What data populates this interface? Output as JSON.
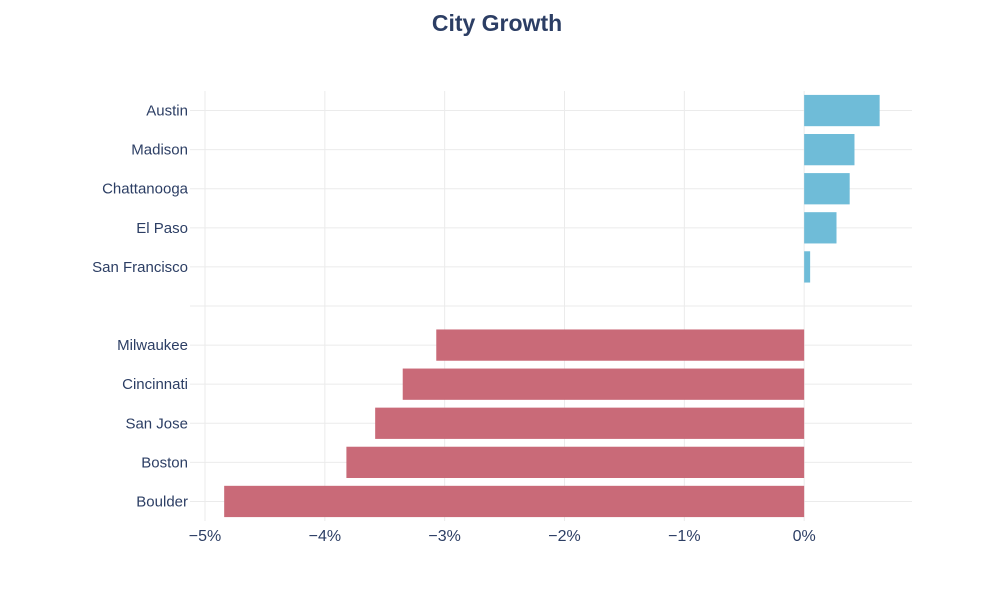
{
  "chart_data": {
    "type": "bar",
    "orientation": "horizontal",
    "title": "City Growth",
    "xlabel": "",
    "ylabel": "",
    "xlim": [
      -5,
      0.9
    ],
    "x_ticks": [
      -5,
      -4,
      -3,
      -2,
      -1,
      0
    ],
    "x_tick_labels": [
      "−5%",
      "−4%",
      "−3%",
      "−2%",
      "−1%",
      "0%"
    ],
    "grid": true,
    "legend": "none",
    "categories": [
      "Austin",
      "Madison",
      "Chattanooga",
      "El Paso",
      "San Francisco",
      "",
      "Milwaukee",
      "Cincinnati",
      "San Jose",
      "Boston",
      "Boulder"
    ],
    "values": [
      0.63,
      0.42,
      0.38,
      0.27,
      0.05,
      null,
      -3.07,
      -3.35,
      -3.58,
      -3.82,
      -4.84
    ],
    "colors": {
      "positive": "#6fbcd8",
      "negative": "#c96a78",
      "label": "#2c3e64",
      "grid": "#ebebeb"
    }
  }
}
